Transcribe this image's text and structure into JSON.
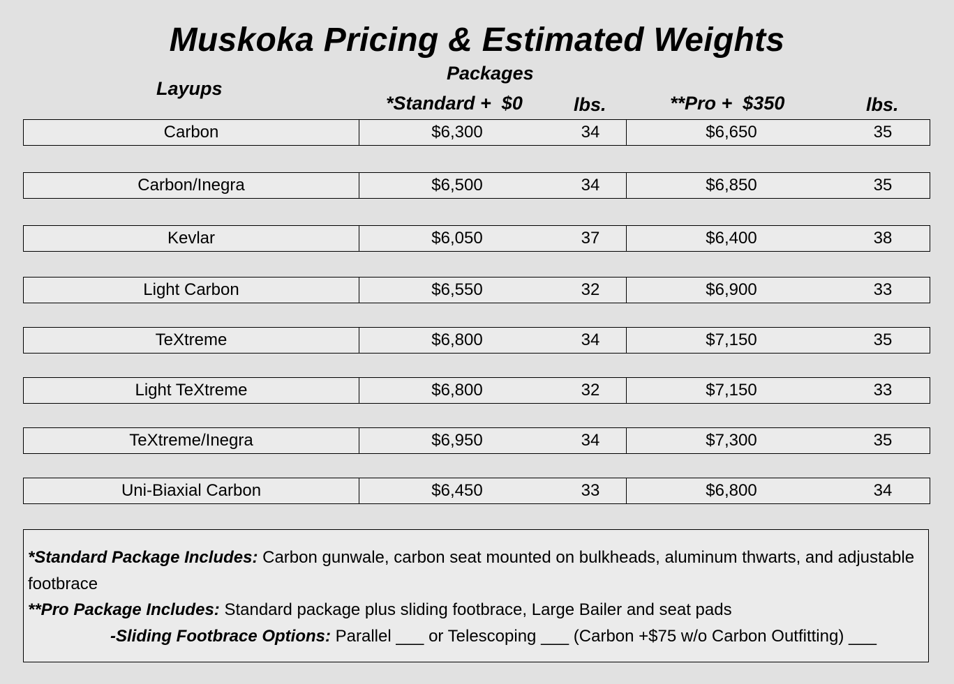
{
  "title": "Muskoka Pricing & Estimated Weights",
  "headers": {
    "layups": "Layups",
    "packages": "Packages",
    "standard": "*Standard +  $0",
    "standard_weight": "lbs.",
    "pro": "**Pro +  $350",
    "pro_weight": "lbs."
  },
  "rows": [
    {
      "layup": "Carbon",
      "standard_price": "$6,300",
      "standard_lbs": "34",
      "pro_price": "$6,650",
      "pro_lbs": "35"
    },
    {
      "layup": "Carbon/Inegra",
      "standard_price": "$6,500",
      "standard_lbs": "34",
      "pro_price": "$6,850",
      "pro_lbs": "35"
    },
    {
      "layup": "Kevlar",
      "standard_price": "$6,050",
      "standard_lbs": "37",
      "pro_price": "$6,400",
      "pro_lbs": "38"
    },
    {
      "layup": "Light Carbon",
      "standard_price": "$6,550",
      "standard_lbs": "32",
      "pro_price": "$6,900",
      "pro_lbs": "33"
    },
    {
      "layup": "TeXtreme",
      "standard_price": "$6,800",
      "standard_lbs": "34",
      "pro_price": "$7,150",
      "pro_lbs": "35"
    },
    {
      "layup": "Light TeXtreme",
      "standard_price": "$6,800",
      "standard_lbs": "32",
      "pro_price": "$7,150",
      "pro_lbs": "33"
    },
    {
      "layup": "TeXtreme/Inegra",
      "standard_price": "$6,950",
      "standard_lbs": "34",
      "pro_price": "$7,300",
      "pro_lbs": "35"
    },
    {
      "layup": "Uni-Biaxial Carbon",
      "standard_price": "$6,450",
      "standard_lbs": "33",
      "pro_price": "$6,800",
      "pro_lbs": "34"
    }
  ],
  "notes": {
    "standard_label": "*Standard Package Includes:",
    "standard_text": "  Carbon gunwale, carbon seat mounted on bulkheads, aluminum thwarts, and adjustable footbrace",
    "pro_label": "**Pro Package  Includes:",
    "pro_text": " Standard package plus sliding footbrace, Large Bailer and seat pads",
    "options_label": "-Sliding Footbrace Options:",
    "options_text": "  Parallel ___ or Telescoping ___ (Carbon +$75 w/o Carbon Outfitting) ___"
  }
}
